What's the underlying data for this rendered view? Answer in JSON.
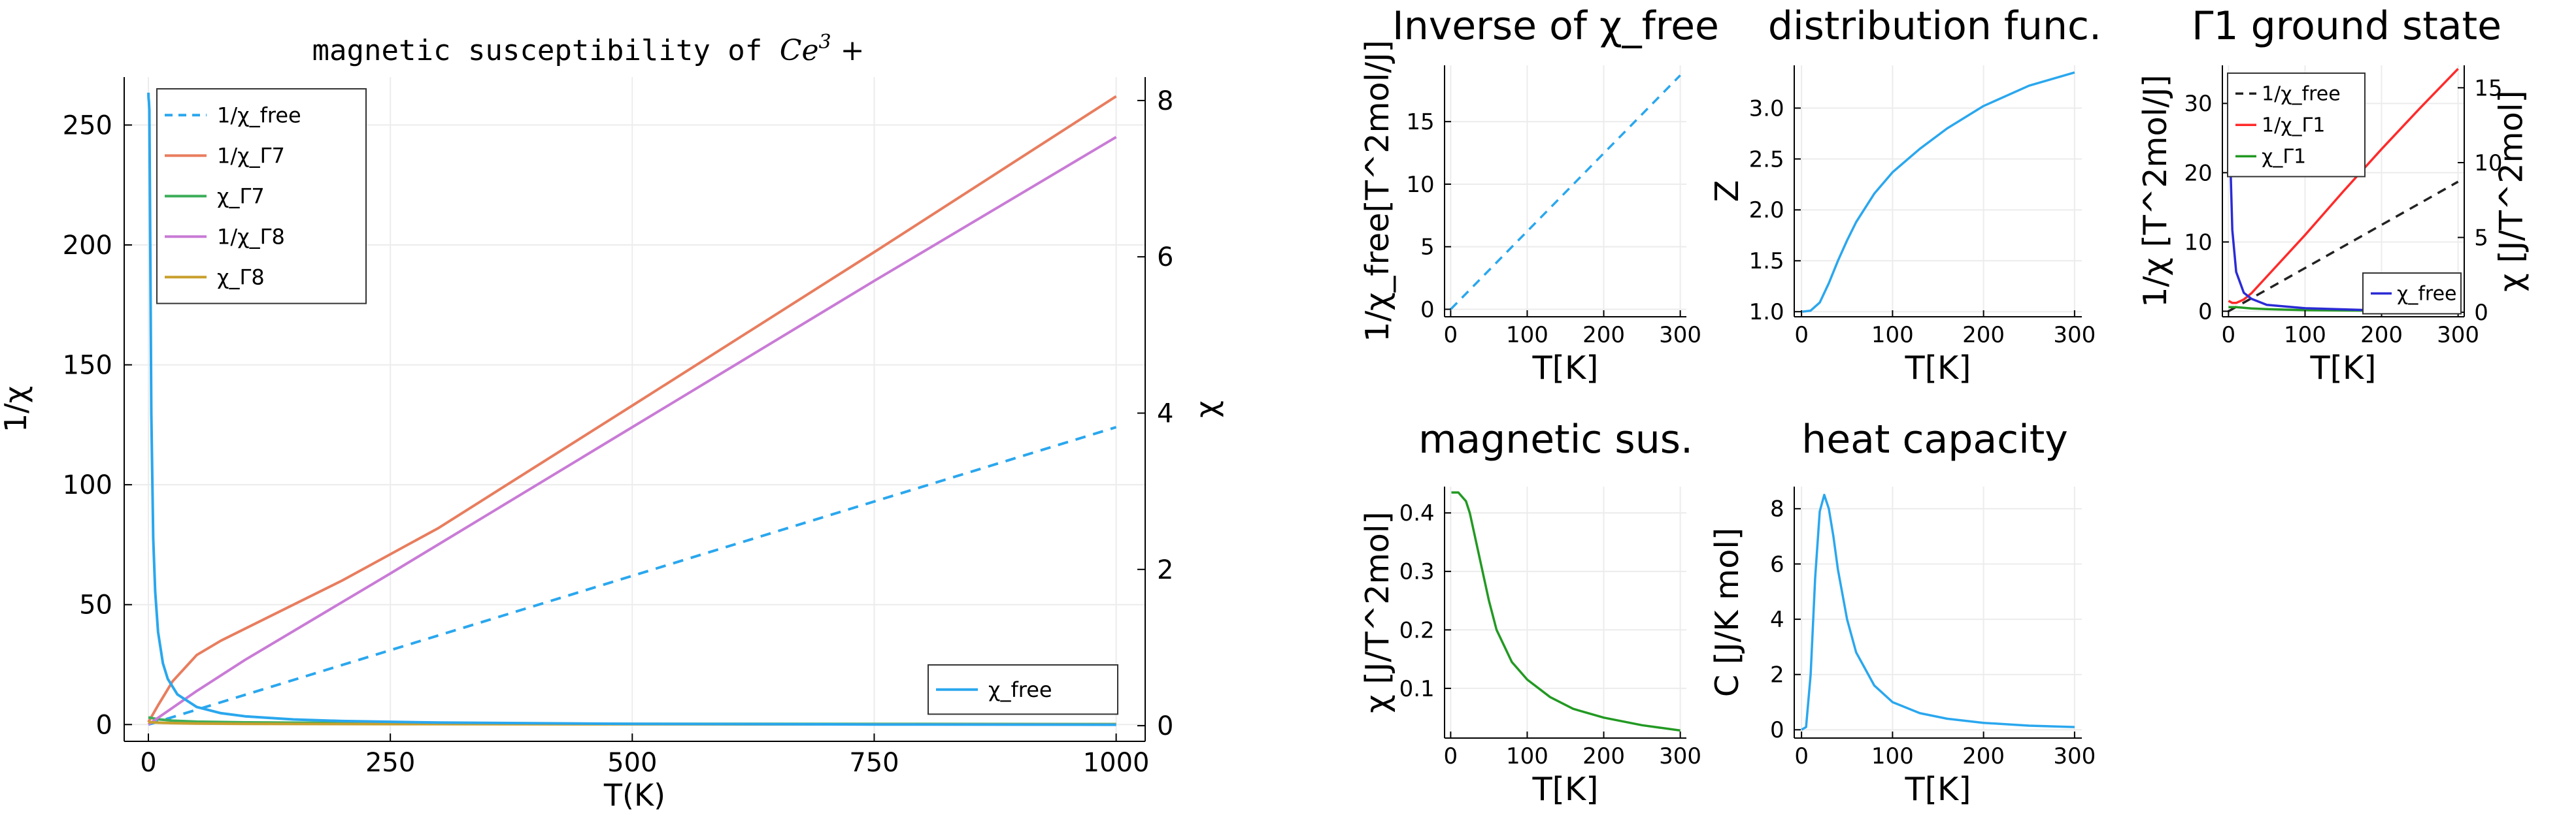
{
  "colors": {
    "blue": "#2aa7ee",
    "orange": "#e87d5e",
    "green": "#3cae5a",
    "purple": "#c97bd6",
    "gold": "#c8a02d",
    "red": "#ff2a2a",
    "darkgreen": "#229922",
    "navy": "#2b2bd6",
    "black": "#222222"
  },
  "chart_data": [
    {
      "id": "main",
      "type": "line",
      "title_prefix": "magnetic susceptibility of ",
      "title_math": "Ce",
      "title_sup": "3",
      "title_suffix": " +",
      "xlabel": "T(K)",
      "ylabel": "1/χ",
      "ylabel_right": "χ",
      "xlim": [
        -25,
        1030
      ],
      "ylim": [
        -7,
        270
      ],
      "ylim_right": [
        -0.2,
        8.3
      ],
      "xticks": [
        0,
        250,
        500,
        750,
        1000
      ],
      "yticks": [
        0,
        50,
        100,
        150,
        200,
        250
      ],
      "yticks_right": [
        0,
        2,
        4,
        6,
        8
      ],
      "grid": true,
      "legend_position": "top-left",
      "legend_right_position": "bottom-right",
      "series": [
        {
          "name": "1/χ_free",
          "axis": "left",
          "color": "blue",
          "dash": true,
          "x": [
            0,
            1000
          ],
          "y": [
            0,
            124
          ]
        },
        {
          "name": "1/χ_Γ7",
          "axis": "left",
          "color": "orange",
          "x": [
            0,
            10,
            25,
            50,
            75,
            100,
            150,
            200,
            300,
            500,
            750,
            1000
          ],
          "y": [
            1,
            8,
            18,
            29,
            35,
            40,
            50,
            60,
            82,
            133,
            197,
            262
          ]
        },
        {
          "name": "χ_Γ7",
          "axis": "left",
          "color": "green",
          "x": [
            0,
            5,
            10,
            25,
            50,
            100,
            250,
            500,
            1000
          ],
          "y": [
            3,
            2.6,
            2.2,
            1.6,
            1.2,
            0.9,
            0.5,
            0.3,
            0.2
          ]
        },
        {
          "name": "1/χ_Γ8",
          "axis": "left",
          "color": "purple",
          "x": [
            0,
            25,
            50,
            100,
            250,
            500,
            750,
            1000
          ],
          "y": [
            0,
            7,
            14,
            27,
            63,
            124,
            185,
            245
          ]
        },
        {
          "name": "χ_Γ8",
          "axis": "left",
          "color": "gold",
          "x": [
            0,
            10,
            25,
            50,
            100,
            250,
            500,
            1000
          ],
          "y": [
            1,
            0.8,
            0.6,
            0.4,
            0.3,
            0.2,
            0.1,
            0.05
          ]
        },
        {
          "name": "χ_free",
          "axis": "right",
          "color": "blue",
          "x": [
            0.05,
            0.1,
            0.25,
            0.5,
            1,
            2,
            3,
            5,
            7,
            10,
            15,
            20,
            30,
            50,
            75,
            100,
            150,
            200,
            300,
            500,
            750,
            1000
          ],
          "y": [
            8.1,
            8.05,
            8.02,
            7.99,
            7.88,
            6.0,
            4.0,
            2.4,
            1.72,
            1.2,
            0.8,
            0.6,
            0.4,
            0.24,
            0.16,
            0.12,
            0.08,
            0.06,
            0.04,
            0.024,
            0.016,
            0.012
          ]
        }
      ]
    },
    {
      "id": "inverse",
      "type": "line",
      "title": "Inverse of χ_free",
      "xlabel": "T[K]",
      "ylabel": "1/χ_free[T^2mol/J]",
      "xlim": [
        -8,
        308
      ],
      "ylim": [
        -0.6,
        19.5
      ],
      "xticks": [
        0,
        100,
        200,
        300
      ],
      "yticks": [
        0,
        5,
        10,
        15
      ],
      "grid": true,
      "series": [
        {
          "color": "blue",
          "dash": true,
          "x": [
            0,
            300
          ],
          "y": [
            0,
            18.7
          ]
        }
      ]
    },
    {
      "id": "distribution",
      "type": "line",
      "title": "distribution func.",
      "xlabel": "T[K]",
      "ylabel": "Z",
      "xlim": [
        -8,
        308
      ],
      "ylim": [
        0.95,
        3.42
      ],
      "xticks": [
        0,
        100,
        200,
        300
      ],
      "yticks": [
        1.0,
        1.5,
        2.0,
        2.5,
        3.0
      ],
      "ytick_labels": [
        "1.0",
        "1.5",
        "2.0",
        "2.5",
        "3.0"
      ],
      "grid": true,
      "series": [
        {
          "color": "blue",
          "x": [
            1,
            10,
            20,
            30,
            40,
            50,
            60,
            80,
            100,
            130,
            160,
            200,
            250,
            300
          ],
          "y": [
            1.0,
            1.01,
            1.09,
            1.28,
            1.5,
            1.7,
            1.88,
            2.16,
            2.37,
            2.6,
            2.8,
            3.02,
            3.22,
            3.35
          ]
        }
      ]
    },
    {
      "id": "gamma1",
      "type": "line",
      "title": "Γ1 ground state",
      "xlabel": "T[K]",
      "ylabel": "1/χ [T^2mol/J]",
      "ylabel_right": "χ [J/T^2mol]",
      "xlim": [
        -8,
        308
      ],
      "ylim": [
        -0.8,
        35.5
      ],
      "ylim_right": [
        -0.3,
        16.5
      ],
      "xticks": [
        0,
        100,
        200,
        300
      ],
      "yticks": [
        0,
        10,
        20,
        30
      ],
      "yticks_right": [
        0,
        5,
        10,
        15
      ],
      "grid": true,
      "legend_position": "top-left",
      "legend_right_position": "bottom-right",
      "series": [
        {
          "name": "1/χ_free",
          "axis": "left",
          "color": "black",
          "dash": true,
          "x": [
            0,
            300
          ],
          "y": [
            0,
            18.7
          ]
        },
        {
          "name": "1/χ_Γ1",
          "axis": "left",
          "color": "red",
          "x": [
            0,
            5,
            10,
            20,
            30,
            50,
            100,
            150,
            200,
            250,
            300
          ],
          "y": [
            1.5,
            1.2,
            1.2,
            1.7,
            2.6,
            5.0,
            11,
            17.3,
            23.4,
            29.3,
            35
          ]
        },
        {
          "name": "χ_Γ1",
          "axis": "left",
          "color": "darkgreen",
          "x": [
            0,
            10,
            20,
            30,
            50,
            100,
            200,
            300
          ],
          "y": [
            0.6,
            0.6,
            0.5,
            0.4,
            0.3,
            0.15,
            0.08,
            0.05
          ]
        },
        {
          "name": "χ_free",
          "axis": "right",
          "color": "navy",
          "x": [
            0.3,
            0.5,
            1,
            2,
            3,
            5,
            10,
            20,
            30,
            50,
            100,
            200,
            300
          ],
          "y": [
            15.8,
            15.7,
            15.5,
            14,
            9,
            5.5,
            2.7,
            1.3,
            0.9,
            0.5,
            0.27,
            0.12,
            0.08
          ]
        }
      ]
    },
    {
      "id": "magsus",
      "type": "line",
      "title": "magnetic sus.",
      "xlabel": "T[K]",
      "ylabel": "χ [J/T^2mol]",
      "xlim": [
        -8,
        308
      ],
      "ylim": [
        0.015,
        0.445
      ],
      "xticks": [
        0,
        100,
        200,
        300
      ],
      "yticks": [
        0.1,
        0.2,
        0.3,
        0.4
      ],
      "ytick_labels": [
        "0.1",
        "0.2",
        "0.3",
        "0.4"
      ],
      "grid": true,
      "series": [
        {
          "color": "darkgreen",
          "x": [
            1,
            10,
            20,
            25,
            30,
            40,
            50,
            60,
            80,
            100,
            130,
            160,
            200,
            250,
            300
          ],
          "y": [
            0.435,
            0.435,
            0.42,
            0.4,
            0.37,
            0.31,
            0.25,
            0.2,
            0.145,
            0.115,
            0.085,
            0.065,
            0.05,
            0.037,
            0.028
          ]
        }
      ]
    },
    {
      "id": "heat",
      "type": "line",
      "title": "heat capacity",
      "xlabel": "T[K]",
      "ylabel": "C [J/K mol]",
      "xlim": [
        -8,
        308
      ],
      "ylim": [
        -0.3,
        8.8
      ],
      "xticks": [
        0,
        100,
        200,
        300
      ],
      "yticks": [
        0,
        2,
        4,
        6,
        8
      ],
      "grid": true,
      "series": [
        {
          "color": "blue",
          "x": [
            0,
            5,
            10,
            15,
            20,
            25,
            30,
            35,
            40,
            50,
            60,
            80,
            100,
            130,
            160,
            200,
            250,
            300
          ],
          "y": [
            0,
            0.1,
            2.0,
            5.5,
            7.9,
            8.5,
            8.0,
            7.0,
            5.8,
            4.0,
            2.8,
            1.6,
            1.0,
            0.6,
            0.4,
            0.25,
            0.15,
            0.1
          ]
        }
      ]
    }
  ]
}
